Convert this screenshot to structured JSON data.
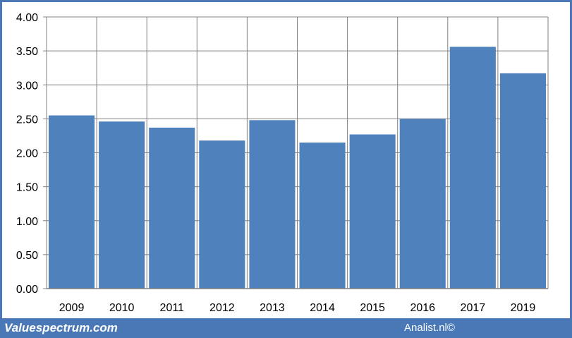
{
  "chart_data": {
    "type": "bar",
    "categories": [
      "2009",
      "2010",
      "2011",
      "2012",
      "2013",
      "2014",
      "2015",
      "2016",
      "2017",
      "2019"
    ],
    "values": [
      2.55,
      2.46,
      2.37,
      2.18,
      2.48,
      2.15,
      2.27,
      2.5,
      3.56,
      3.17
    ],
    "ylim": [
      0,
      4
    ],
    "yticks": [
      "0.00",
      "0.50",
      "1.00",
      "1.50",
      "2.00",
      "2.50",
      "3.00",
      "3.50",
      "4.00"
    ],
    "grid": true,
    "bar_color": "#4f81bd",
    "grid_color": "#808080"
  },
  "footer": {
    "left": "Valuespectrum.com",
    "right": "Analist.nl©"
  },
  "colors": {
    "frame": "#4a78b6",
    "background": "#ffffff"
  }
}
